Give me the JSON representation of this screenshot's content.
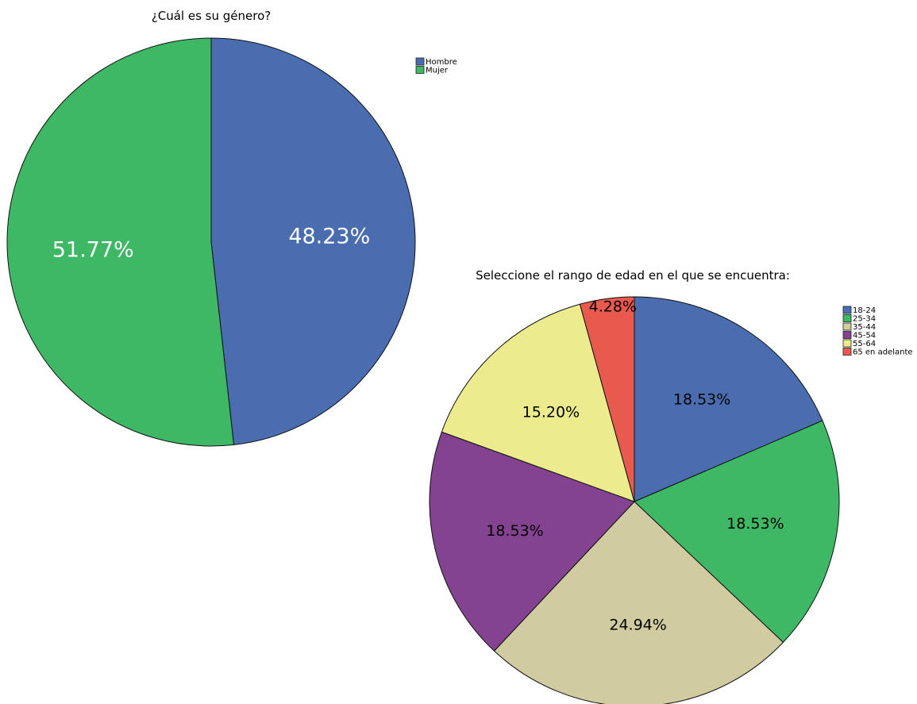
{
  "chart_data": [
    {
      "type": "pie",
      "title": "¿Cuál es su género?",
      "categories": [
        "Hombre",
        "Mujer"
      ],
      "values": [
        48.23,
        51.77
      ],
      "labels": [
        "48.23%",
        "51.77%"
      ],
      "colors": [
        "#4a6db0",
        "#3fb865"
      ],
      "label_color": "#ffffff",
      "legend_position": "top-right"
    },
    {
      "type": "pie",
      "title": "Seleccione el rango de edad en el que se encuentra:",
      "categories": [
        "18-24",
        "25-34",
        "35-44",
        "45-54",
        "55-64",
        "65 en adelante"
      ],
      "values": [
        18.53,
        18.53,
        24.94,
        18.53,
        15.2,
        4.28
      ],
      "labels": [
        "18.53%",
        "18.53%",
        "24.94%",
        "18.53%",
        "15.20%",
        "4.28%"
      ],
      "colors": [
        "#4a6db0",
        "#3fb865",
        "#d0cba0",
        "#844390",
        "#eceb8e",
        "#e85a4e"
      ],
      "label_color": "#000000",
      "legend_position": "top-right"
    }
  ]
}
